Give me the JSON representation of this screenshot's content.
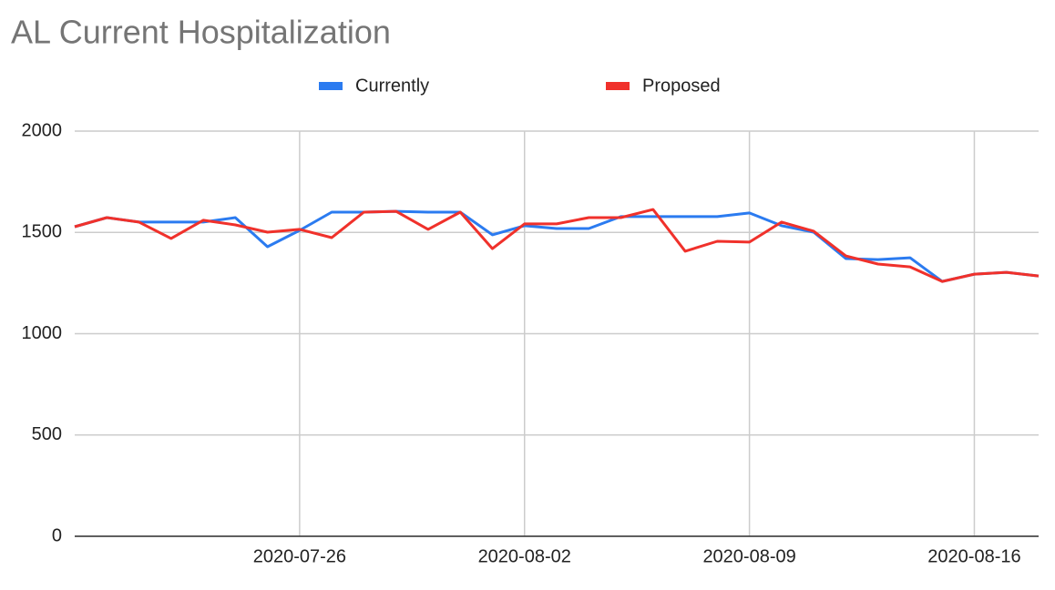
{
  "chart_data": {
    "type": "line",
    "title": "AL Current Hospitalization",
    "x": [
      "2020-07-19",
      "2020-07-20",
      "2020-07-21",
      "2020-07-22",
      "2020-07-23",
      "2020-07-24",
      "2020-07-25",
      "2020-07-26",
      "2020-07-27",
      "2020-07-28",
      "2020-07-29",
      "2020-07-30",
      "2020-07-31",
      "2020-08-01",
      "2020-08-02",
      "2020-08-03",
      "2020-08-04",
      "2020-08-05",
      "2020-08-06",
      "2020-08-07",
      "2020-08-08",
      "2020-08-09",
      "2020-08-10",
      "2020-08-11",
      "2020-08-12",
      "2020-08-13",
      "2020-08-14",
      "2020-08-15",
      "2020-08-16",
      "2020-08-17",
      "2020-08-18"
    ],
    "series": [
      {
        "name": "Currently",
        "color": "#2b7bf0",
        "values": [
          1528,
          1573,
          1551,
          1551,
          1551,
          1573,
          1429,
          1510,
          1600,
          1600,
          1604,
          1600,
          1600,
          1488,
          1533,
          1519,
          1519,
          1578,
          1578,
          1578,
          1578,
          1596,
          1533,
          1501,
          1371,
          1366,
          1375,
          1258,
          1294,
          1303,
          1285
        ]
      },
      {
        "name": "Proposed",
        "color": "#f0312b",
        "values": [
          1528,
          1573,
          1551,
          1470,
          1560,
          1537,
          1501,
          1515,
          1474,
          1600,
          1604,
          1515,
          1600,
          1420,
          1542,
          1542,
          1573,
          1573,
          1613,
          1407,
          1456,
          1452,
          1551,
          1506,
          1384,
          1344,
          1330,
          1258,
          1294,
          1303,
          1285
        ]
      }
    ],
    "xlim": [
      "2020-07-19",
      "2020-08-18"
    ],
    "xticks": [
      "2020-07-26",
      "2020-08-02",
      "2020-08-09",
      "2020-08-16"
    ],
    "ylim": [
      0,
      2000
    ],
    "yticks": [
      0,
      500,
      1000,
      1500,
      2000
    ],
    "grid": true,
    "legend": "top"
  }
}
